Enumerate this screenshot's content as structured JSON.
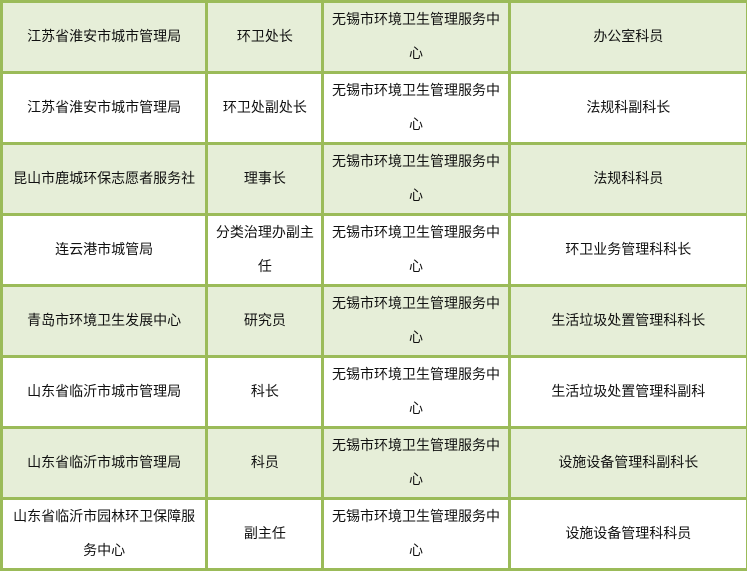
{
  "rows": [
    [
      "江苏省淮安市城市管理局",
      "环卫处长",
      "无锡市环境卫生管理服务中心",
      "办公室科员"
    ],
    [
      "江苏省淮安市城市管理局",
      "环卫处副处长",
      "无锡市环境卫生管理服务中心",
      "法规科副科长"
    ],
    [
      "昆山市鹿城环保志愿者服务社",
      "理事长",
      "无锡市环境卫生管理服务中心",
      "法规科科员"
    ],
    [
      "连云港市城管局",
      "分类治理办副主任",
      "无锡市环境卫生管理服务中心",
      "环卫业务管理科科长"
    ],
    [
      "青岛市环境卫生发展中心",
      "研究员",
      "无锡市环境卫生管理服务中心",
      "生活垃圾处置管理科科长"
    ],
    [
      "山东省临沂市城市管理局",
      "科长",
      "无锡市环境卫生管理服务中心",
      "生活垃圾处置管理科副科"
    ],
    [
      "山东省临沂市城市管理局",
      "科员",
      "无锡市环境卫生管理服务中心",
      "设施设备管理科副科长"
    ],
    [
      "山东省临沂市园林环卫保障服务中心",
      "副主任",
      "无锡市环境卫生管理服务中心",
      "设施设备管理科科员"
    ]
  ],
  "colors": {
    "border": "#9bbb59",
    "alt_fill": "#e6eed8"
  }
}
